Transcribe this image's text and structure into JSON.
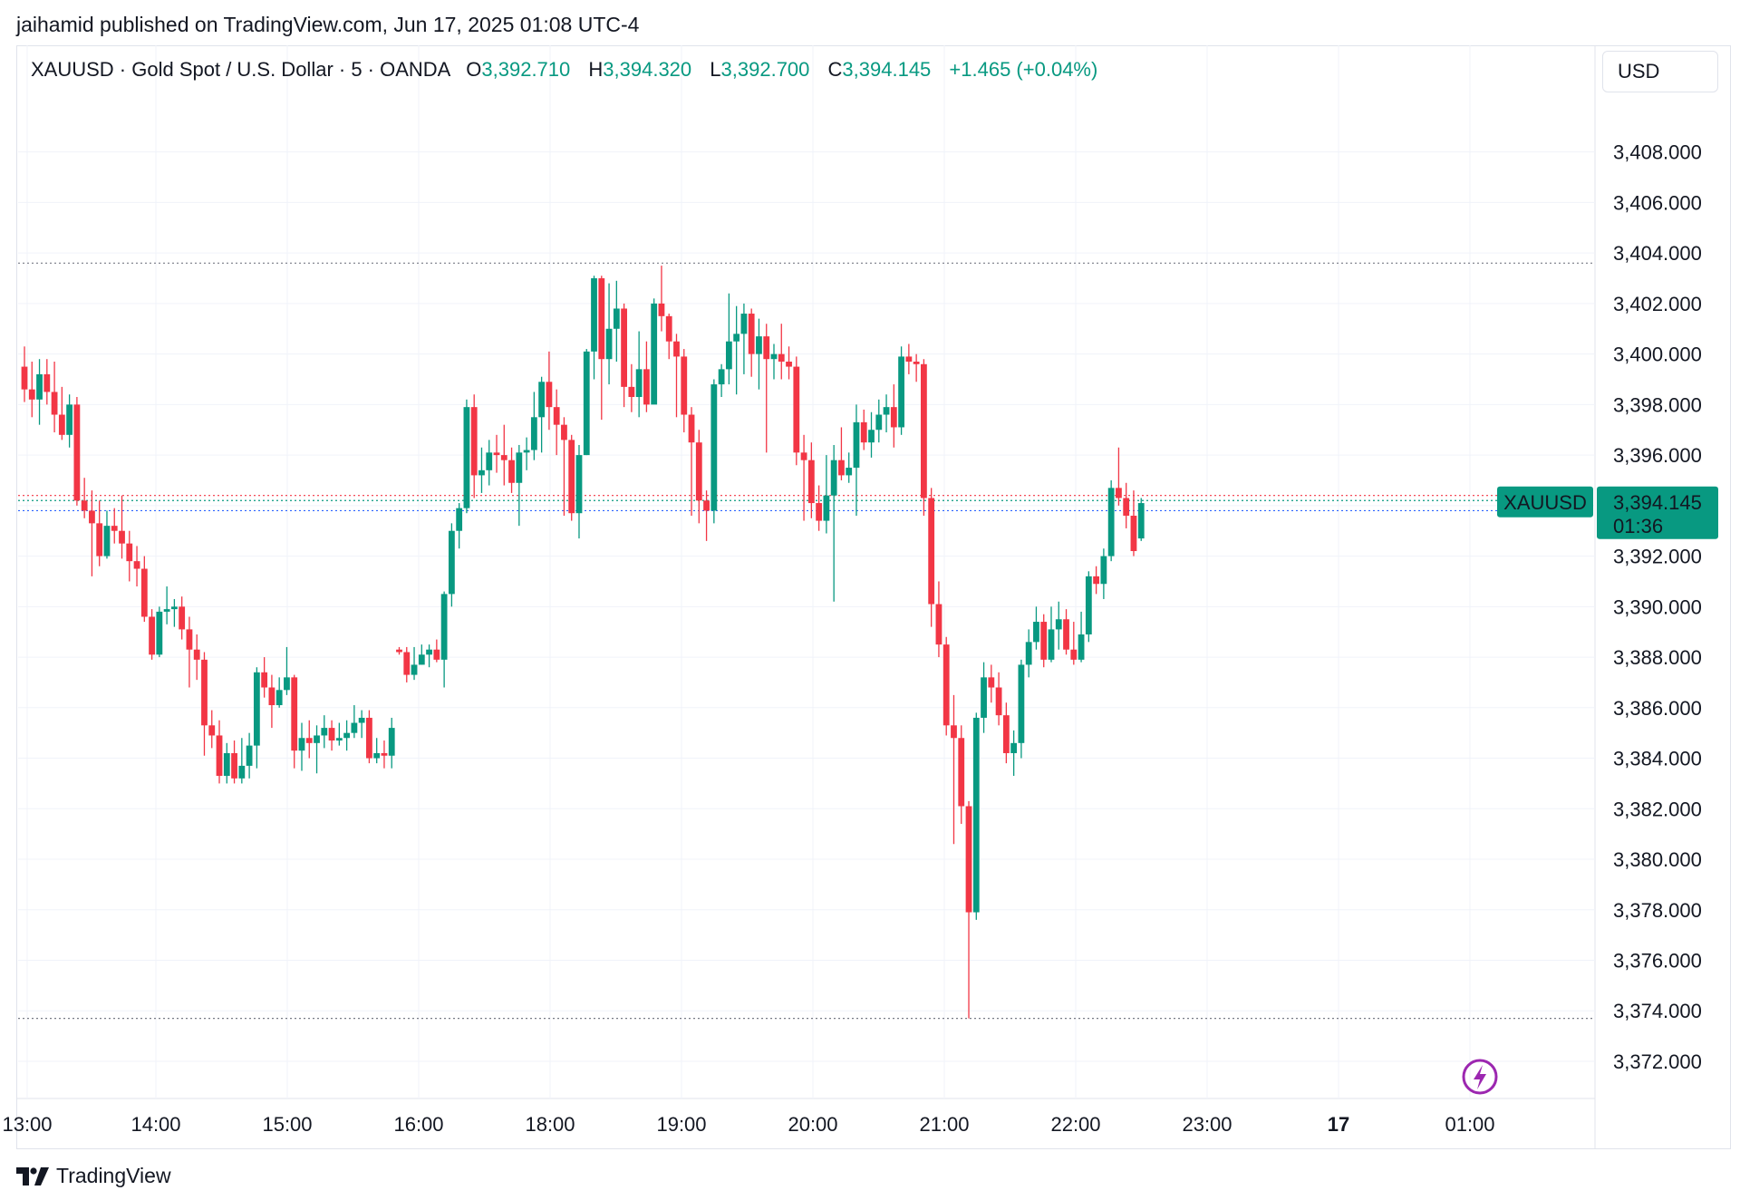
{
  "header": {
    "published_line": "jaihamid published on TradingView.com, Jun 17, 2025 01:08 UTC-4"
  },
  "legend": {
    "symbol_line": "XAUUSD · Gold Spot / U.S. Dollar · 5 · OANDA",
    "o_label": "O",
    "o_value": "3,392.710",
    "h_label": "H",
    "h_value": "3,394.320",
    "l_label": "L",
    "l_value": "3,392.700",
    "c_label": "C",
    "c_value": "3,394.145",
    "change": "+1.465 (+0.04%)"
  },
  "currency": "USD",
  "price_tag": {
    "symbol": "XAUUSD",
    "price": "3,394.145",
    "countdown": "01:36"
  },
  "footer": {
    "brand": "TradingView"
  },
  "icons": {
    "lightning": "lightning-icon",
    "logo": "tradingview-logo-icon"
  },
  "colors": {
    "up": "#089981",
    "down": "#f23645",
    "grid": "#f0f3fa",
    "text": "#131722"
  },
  "chart_data": {
    "type": "candlestick",
    "title": "XAUUSD · Gold Spot / U.S. Dollar · 5 · OANDA",
    "ylim": [
      3370.6,
      3410.5
    ],
    "y_ticks": [
      "3,372.000",
      "3,374.000",
      "3,376.000",
      "3,378.000",
      "3,380.000",
      "3,382.000",
      "3,384.000",
      "3,386.000",
      "3,388.000",
      "3,390.000",
      "3,392.000",
      "3,394.000",
      "3,396.000",
      "3,398.000",
      "3,400.000",
      "3,402.000",
      "3,404.000",
      "3,406.000",
      "3,408.000"
    ],
    "x_ticks": [
      "13:00",
      "14:00",
      "15:00",
      "16:00",
      "18:00",
      "19:00",
      "20:00",
      "21:00",
      "22:00",
      "23:00",
      "17",
      "01:00"
    ],
    "x_ticks_bold": [
      "17"
    ],
    "horizontal_levels": [
      3403.6,
      3373.7,
      3394.4,
      3394.2,
      3393.8
    ],
    "candles": [
      [
        3399.5,
        3398.6,
        3400.3,
        3398.1
      ],
      [
        3398.6,
        3398.2,
        3399.7,
        3397.5
      ],
      [
        3398.2,
        3399.2,
        3399.8,
        3397.2
      ],
      [
        3399.2,
        3398.5,
        3399.8,
        3398.0
      ],
      [
        3398.5,
        3397.6,
        3399.7,
        3396.9
      ],
      [
        3397.6,
        3396.8,
        3398.7,
        3396.6
      ],
      [
        3396.8,
        3398.0,
        3398.4,
        3396.3
      ],
      [
        3398.0,
        3394.2,
        3398.3,
        3394.0
      ],
      [
        3394.2,
        3393.8,
        3395.1,
        3393.5
      ],
      [
        3393.8,
        3393.3,
        3394.6,
        3391.2
      ],
      [
        3393.3,
        3392.0,
        3394.2,
        3391.6
      ],
      [
        3392.0,
        3393.2,
        3393.8,
        3391.9
      ],
      [
        3393.2,
        3393.0,
        3393.9,
        3392.5
      ],
      [
        3393.0,
        3392.5,
        3394.4,
        3391.9
      ],
      [
        3392.5,
        3391.8,
        3393.0,
        3391.0
      ],
      [
        3391.8,
        3391.5,
        3392.4,
        3390.8
      ],
      [
        3391.5,
        3389.6,
        3392.0,
        3389.4
      ],
      [
        3389.6,
        3388.1,
        3389.9,
        3387.9
      ],
      [
        3388.1,
        3389.8,
        3390.0,
        3388.0
      ],
      [
        3389.8,
        3389.9,
        3390.8,
        3389.3
      ],
      [
        3389.9,
        3390.0,
        3390.3,
        3389.2
      ],
      [
        3390.0,
        3389.1,
        3390.4,
        3388.7
      ],
      [
        3389.1,
        3388.3,
        3389.6,
        3386.8
      ],
      [
        3388.3,
        3387.9,
        3388.9,
        3387.1
      ],
      [
        3387.9,
        3385.3,
        3388.2,
        3384.1
      ],
      [
        3385.3,
        3384.9,
        3385.9,
        3384.4
      ],
      [
        3384.9,
        3383.3,
        3385.5,
        3383.0
      ],
      [
        3383.3,
        3384.2,
        3384.6,
        3383.0
      ],
      [
        3384.2,
        3383.2,
        3384.7,
        3383.0
      ],
      [
        3383.2,
        3383.7,
        3384.8,
        3383.0
      ],
      [
        3383.7,
        3384.5,
        3385.0,
        3383.2
      ],
      [
        3384.5,
        3387.4,
        3387.6,
        3383.6
      ],
      [
        3387.4,
        3386.8,
        3388.0,
        3386.4
      ],
      [
        3386.8,
        3386.1,
        3387.3,
        3385.2
      ],
      [
        3386.1,
        3386.7,
        3387.2,
        3386.0
      ],
      [
        3386.7,
        3387.2,
        3388.4,
        3386.5
      ],
      [
        3387.2,
        3384.3,
        3387.3,
        3383.6
      ],
      [
        3384.3,
        3384.8,
        3385.4,
        3383.5
      ],
      [
        3384.8,
        3384.6,
        3385.5,
        3384.0
      ],
      [
        3384.6,
        3384.9,
        3385.3,
        3383.4
      ],
      [
        3384.9,
        3385.2,
        3385.7,
        3384.4
      ],
      [
        3385.2,
        3384.7,
        3385.5,
        3384.3
      ],
      [
        3384.7,
        3384.8,
        3385.4,
        3384.5
      ],
      [
        3384.8,
        3385.0,
        3385.5,
        3384.3
      ],
      [
        3385.0,
        3385.4,
        3386.1,
        3384.8
      ],
      [
        3385.4,
        3385.6,
        3385.9,
        3384.8
      ],
      [
        3385.6,
        3384.0,
        3385.9,
        3383.8
      ],
      [
        3384.0,
        3384.2,
        3384.8,
        3383.8
      ],
      [
        3384.2,
        3384.1,
        3384.7,
        3383.6
      ],
      [
        3384.1,
        3385.2,
        3385.6,
        3383.6
      ],
      [
        3388.3,
        3388.2,
        3388.4,
        3388.1
      ],
      [
        3388.2,
        3387.3,
        3388.4,
        3387.0
      ],
      [
        3387.3,
        3387.7,
        3388.4,
        3387.1
      ],
      [
        3387.7,
        3388.1,
        3388.5,
        3387.7
      ],
      [
        3388.1,
        3388.3,
        3388.5,
        3387.6
      ],
      [
        3388.3,
        3387.9,
        3388.7,
        3387.8
      ],
      [
        3387.9,
        3390.5,
        3390.6,
        3386.8
      ],
      [
        3390.5,
        3393.0,
        3393.3,
        3390.0
      ],
      [
        3393.0,
        3393.9,
        3394.1,
        3392.3
      ],
      [
        3393.9,
        3397.9,
        3398.2,
        3393.7
      ],
      [
        3397.9,
        3395.2,
        3398.4,
        3394.3
      ],
      [
        3395.2,
        3395.4,
        3396.3,
        3394.5
      ],
      [
        3395.4,
        3396.1,
        3396.6,
        3394.8
      ],
      [
        3396.1,
        3396.0,
        3396.8,
        3395.3
      ],
      [
        3396.0,
        3395.8,
        3397.2,
        3394.8
      ],
      [
        3395.8,
        3394.9,
        3396.3,
        3394.5
      ],
      [
        3394.9,
        3396.1,
        3396.4,
        3393.2
      ],
      [
        3396.1,
        3396.2,
        3396.7,
        3395.4
      ],
      [
        3396.2,
        3397.5,
        3398.5,
        3395.8
      ],
      [
        3397.5,
        3398.9,
        3399.1,
        3396.1
      ],
      [
        3398.9,
        3397.9,
        3400.1,
        3397.0
      ],
      [
        3397.9,
        3397.2,
        3398.6,
        3396.0
      ],
      [
        3397.2,
        3396.6,
        3397.5,
        3393.6
      ],
      [
        3396.6,
        3393.7,
        3396.8,
        3393.4
      ],
      [
        3393.7,
        3396.0,
        3396.4,
        3392.7
      ],
      [
        3396.0,
        3400.1,
        3400.2,
        3396.0
      ],
      [
        3400.1,
        3403.0,
        3403.1,
        3399.0
      ],
      [
        3403.0,
        3399.8,
        3403.1,
        3397.4
      ],
      [
        3399.8,
        3401.0,
        3402.8,
        3398.8
      ],
      [
        3401.0,
        3401.8,
        3402.9,
        3399.7
      ],
      [
        3401.8,
        3398.7,
        3402.0,
        3397.9
      ],
      [
        3398.7,
        3398.3,
        3399.6,
        3397.7
      ],
      [
        3398.3,
        3399.4,
        3400.9,
        3397.5
      ],
      [
        3399.4,
        3398.0,
        3400.5,
        3397.7
      ],
      [
        3398.0,
        3402.0,
        3402.2,
        3398.6
      ],
      [
        3402.0,
        3401.5,
        3403.5,
        3400.9
      ],
      [
        3401.5,
        3400.5,
        3401.6,
        3399.8
      ],
      [
        3400.5,
        3399.9,
        3400.8,
        3397.5
      ],
      [
        3399.9,
        3397.6,
        3400.2,
        3396.9
      ],
      [
        3397.6,
        3396.5,
        3397.9,
        3393.6
      ],
      [
        3396.5,
        3394.2,
        3397.0,
        3393.3
      ],
      [
        3394.2,
        3393.8,
        3394.6,
        3392.6
      ],
      [
        3393.8,
        3398.8,
        3399.0,
        3393.3
      ],
      [
        3398.8,
        3399.4,
        3399.6,
        3398.3
      ],
      [
        3399.4,
        3400.5,
        3402.4,
        3398.8
      ],
      [
        3400.5,
        3400.8,
        3401.9,
        3398.4
      ],
      [
        3400.8,
        3401.6,
        3402.0,
        3399.2
      ],
      [
        3401.6,
        3400.0,
        3401.8,
        3399.1
      ],
      [
        3400.0,
        3400.7,
        3401.4,
        3398.6
      ],
      [
        3400.7,
        3399.8,
        3401.2,
        3396.1
      ],
      [
        3399.8,
        3400.0,
        3400.4,
        3399.0
      ],
      [
        3400.0,
        3399.7,
        3401.2,
        3399.0
      ],
      [
        3399.7,
        3399.5,
        3400.3,
        3399.0
      ],
      [
        3399.5,
        3396.1,
        3399.9,
        3395.6
      ],
      [
        3396.1,
        3395.8,
        3396.8,
        3393.4
      ],
      [
        3395.8,
        3394.1,
        3396.5,
        3393.5
      ],
      [
        3394.1,
        3393.4,
        3394.8,
        3393.0
      ],
      [
        3393.4,
        3394.4,
        3396.0,
        3392.9
      ],
      [
        3394.4,
        3395.8,
        3396.4,
        3390.2
      ],
      [
        3395.8,
        3395.2,
        3397.1,
        3395.0
      ],
      [
        3395.2,
        3395.5,
        3396.1,
        3394.9
      ],
      [
        3395.5,
        3397.3,
        3398.0,
        3393.6
      ],
      [
        3397.3,
        3396.5,
        3397.8,
        3396.2
      ],
      [
        3396.5,
        3397.0,
        3397.7,
        3395.9
      ],
      [
        3397.0,
        3397.6,
        3398.2,
        3396.5
      ],
      [
        3397.6,
        3397.9,
        3398.4,
        3396.9
      ],
      [
        3397.9,
        3397.1,
        3398.8,
        3396.3
      ],
      [
        3397.1,
        3399.9,
        3400.3,
        3396.8
      ],
      [
        3399.9,
        3399.7,
        3400.4,
        3399.2
      ],
      [
        3399.7,
        3399.6,
        3400.0,
        3398.9
      ],
      [
        3399.6,
        3394.3,
        3399.8,
        3393.6
      ],
      [
        3394.3,
        3390.1,
        3394.7,
        3389.2
      ],
      [
        3390.1,
        3388.5,
        3391.0,
        3388.0
      ],
      [
        3388.5,
        3385.3,
        3388.8,
        3384.9
      ],
      [
        3385.3,
        3384.8,
        3386.5,
        3380.6
      ],
      [
        3384.8,
        3382.1,
        3385.3,
        3381.4
      ],
      [
        3382.1,
        3377.9,
        3382.3,
        3373.7
      ],
      [
        3377.9,
        3385.6,
        3385.8,
        3377.6
      ],
      [
        3385.6,
        3387.2,
        3387.8,
        3385.0
      ],
      [
        3387.2,
        3386.8,
        3387.7,
        3386.2
      ],
      [
        3386.8,
        3385.7,
        3387.4,
        3385.3
      ],
      [
        3385.7,
        3384.2,
        3386.2,
        3383.8
      ],
      [
        3384.2,
        3384.6,
        3385.1,
        3383.3
      ],
      [
        3384.6,
        3387.7,
        3387.9,
        3384.0
      ],
      [
        3387.7,
        3388.6,
        3389.1,
        3387.2
      ],
      [
        3388.6,
        3389.4,
        3390.0,
        3388.3
      ],
      [
        3389.4,
        3387.9,
        3389.7,
        3387.6
      ],
      [
        3387.9,
        3389.1,
        3390.0,
        3387.8
      ],
      [
        3389.1,
        3389.5,
        3390.2,
        3388.3
      ],
      [
        3389.5,
        3388.3,
        3389.9,
        3388.1
      ],
      [
        3388.3,
        3387.9,
        3389.4,
        3387.7
      ],
      [
        3387.9,
        3388.9,
        3389.8,
        3387.8
      ],
      [
        3388.9,
        3391.2,
        3391.4,
        3388.6
      ],
      [
        3391.2,
        3390.9,
        3391.6,
        3390.5
      ],
      [
        3390.9,
        3392.0,
        3392.3,
        3390.3
      ],
      [
        3392.0,
        3394.7,
        3395.0,
        3391.8
      ],
      [
        3394.7,
        3394.3,
        3396.3,
        3394.0
      ],
      [
        3394.3,
        3393.6,
        3394.9,
        3393.1
      ],
      [
        3393.6,
        3392.2,
        3394.6,
        3392.0
      ],
      [
        3392.7,
        3394.1,
        3394.3,
        3392.6
      ]
    ]
  }
}
